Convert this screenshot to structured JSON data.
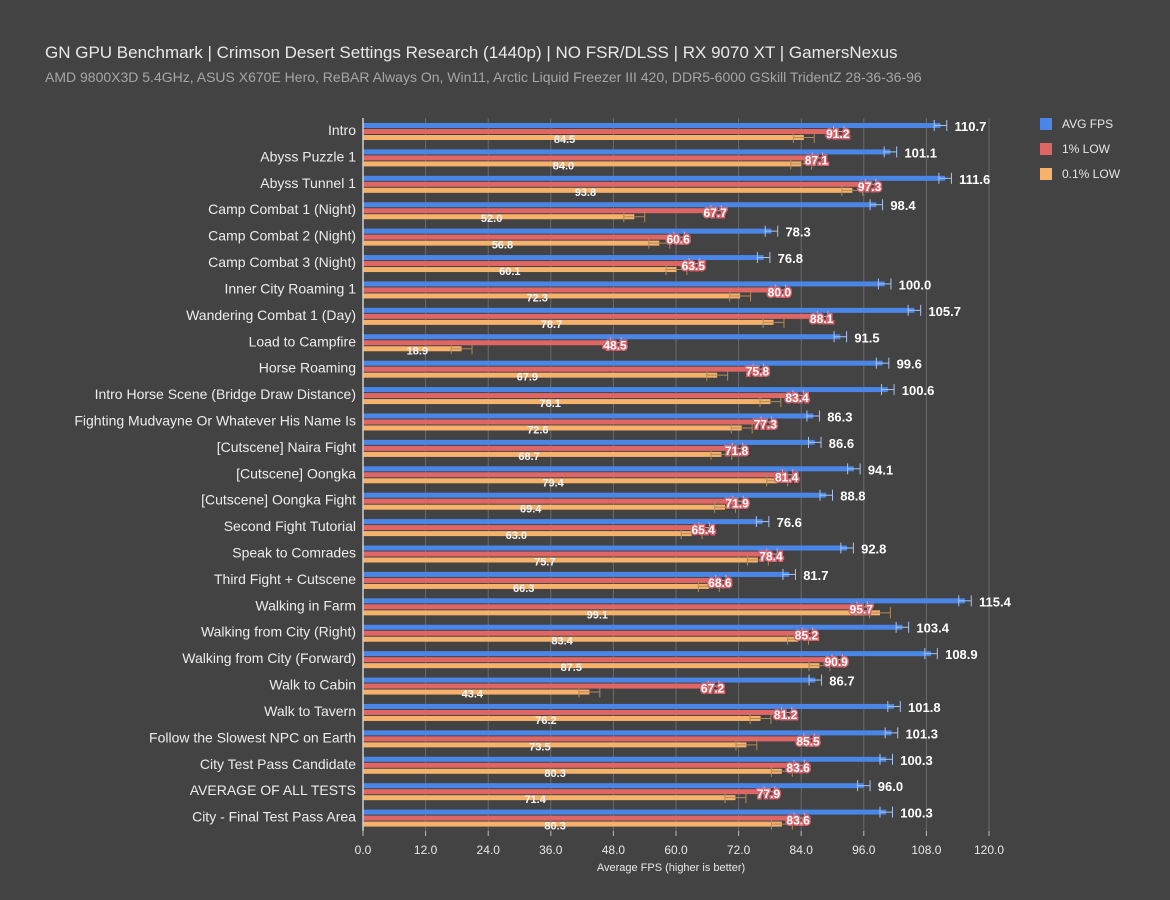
{
  "chart_data": {
    "type": "bar",
    "orientation": "horizontal",
    "title": "GN GPU Benchmark | Crimson Desert Settings Research (1440p) | NO FSR/DLSS | RX 9070 XT | GamersNexus",
    "subtitle": "AMD 9800X3D 5.4GHz, ASUS X670E Hero, ReBAR Always On, Win11, Arctic Liquid Freezer III 420, DDR5-6000 GSkill TridentZ 28-36-36-96",
    "xlabel": "Average FPS (higher is better)",
    "ylabel": "",
    "xlim": [
      0,
      120
    ],
    "xticks": [
      "0.0",
      "12.0",
      "24.0",
      "36.0",
      "48.0",
      "60.0",
      "72.0",
      "84.0",
      "96.0",
      "108.0",
      "120.0"
    ],
    "grid": true,
    "legend_position": "top-right",
    "categories": [
      "Intro",
      "Abyss Puzzle 1",
      "Abyss Tunnel 1",
      "Camp Combat 1 (Night)",
      "Camp Combat 2 (Night)",
      "Camp Combat 3 (Night)",
      "Inner City Roaming 1",
      "Wandering Combat 1 (Day)",
      "Load to Campfire",
      "Horse Roaming",
      "Intro Horse Scene (Bridge Draw Distance)",
      "Fighting Mudvayne Or Whatever His Name Is",
      "[Cutscene] Naira Fight",
      "[Cutscene] Oongka",
      "[Cutscene] Oongka Fight",
      "Second Fight Tutorial",
      "Speak to Comrades",
      "Third Fight + Cutscene",
      "Walking in Farm",
      "Walking from City (Right)",
      "Walking from City (Forward)",
      "Walk to Cabin",
      "Walk to Tavern",
      "Follow the Slowest NPC on Earth",
      "City Test Pass Candidate",
      "AVERAGE OF ALL TESTS",
      "City - Final Test Pass Area"
    ],
    "series": [
      {
        "name": "AVG FPS",
        "color": "#4a86e8",
        "values": [
          110.7,
          101.1,
          111.6,
          98.4,
          78.3,
          76.8,
          100.0,
          105.7,
          91.5,
          99.6,
          100.6,
          86.3,
          86.6,
          94.1,
          88.8,
          76.6,
          92.8,
          81.7,
          115.4,
          103.4,
          108.9,
          86.7,
          101.8,
          101.3,
          100.3,
          96.0,
          100.3
        ]
      },
      {
        "name": "1% LOW",
        "color": "#e06666",
        "values": [
          91.2,
          87.1,
          97.3,
          67.7,
          60.6,
          63.5,
          80.0,
          88.1,
          48.5,
          75.8,
          83.4,
          77.3,
          71.8,
          81.4,
          71.9,
          65.4,
          78.4,
          68.6,
          95.7,
          85.2,
          90.9,
          67.2,
          81.2,
          85.5,
          83.6,
          77.9,
          83.6
        ]
      },
      {
        "name": "0.1% LOW",
        "color": "#f6b26b",
        "values": [
          84.5,
          84.0,
          93.8,
          52.0,
          56.8,
          60.1,
          72.3,
          78.7,
          18.9,
          67.9,
          78.1,
          72.6,
          68.7,
          79.4,
          69.4,
          63.0,
          75.7,
          66.3,
          99.1,
          83.4,
          87.5,
          43.4,
          76.2,
          73.5,
          80.3,
          71.4,
          80.3
        ]
      }
    ]
  }
}
